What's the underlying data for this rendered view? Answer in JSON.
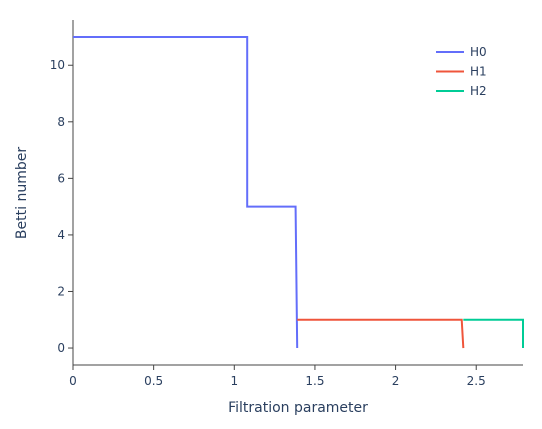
{
  "chart_data": {
    "type": "line",
    "line_shape": "step",
    "title": "",
    "xlabel": "Filtration parameter",
    "ylabel": "Betti number",
    "xlim": [
      0,
      2.79
    ],
    "ylim": [
      -0.6,
      11.6
    ],
    "x_ticks": [
      0,
      0.5,
      1,
      1.5,
      2,
      2.5
    ],
    "x_tick_labels": [
      "0",
      "0.5",
      "1",
      "1.5",
      "2",
      "2.5"
    ],
    "y_ticks": [
      0,
      2,
      4,
      6,
      8,
      10
    ],
    "y_tick_labels": [
      "0",
      "2",
      "4",
      "6",
      "8",
      "10"
    ],
    "grid": false,
    "legend_position": "top-right",
    "series": [
      {
        "name": "H0",
        "color": "#636efa",
        "points": [
          [
            0,
            11
          ],
          [
            1.08,
            11
          ],
          [
            1.08,
            5
          ],
          [
            1.38,
            5
          ],
          [
            1.39,
            0
          ]
        ]
      },
      {
        "name": "H1",
        "color": "#ef553b",
        "points": [
          [
            1.39,
            1
          ],
          [
            2.41,
            1
          ],
          [
            2.42,
            0
          ]
        ]
      },
      {
        "name": "H2",
        "color": "#00cc96",
        "points": [
          [
            2.42,
            1
          ],
          [
            2.79,
            1
          ],
          [
            2.79,
            0
          ]
        ]
      }
    ]
  }
}
